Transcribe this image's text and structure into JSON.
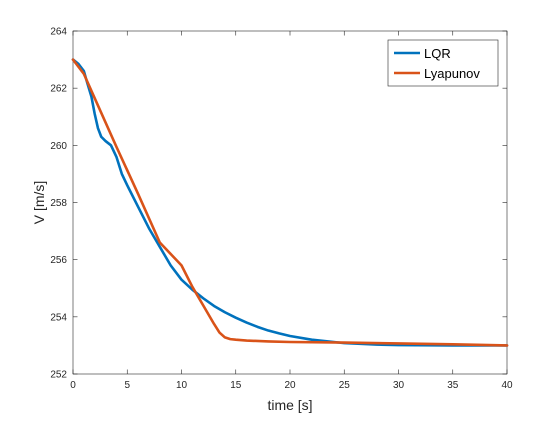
{
  "chart_data": {
    "type": "line",
    "title": "",
    "xlabel": "time [s]",
    "ylabel": "V [m/s]",
    "xlim": [
      0,
      40
    ],
    "ylim": [
      252,
      264
    ],
    "xticks": [
      0,
      5,
      10,
      15,
      20,
      25,
      30,
      35,
      40
    ],
    "yticks": [
      252,
      254,
      256,
      258,
      260,
      262,
      264
    ],
    "grid": false,
    "legend_position": "top-right",
    "series": [
      {
        "name": "LQR",
        "color": "#0072BD",
        "x": [
          0,
          0.5,
          1,
          1.3,
          1.7,
          2.0,
          2.3,
          2.6,
          3.0,
          3.5,
          4.0,
          4.5,
          5.0,
          6.0,
          7.0,
          8.0,
          9.0,
          10.0,
          11.0,
          12.0,
          13.0,
          14.0,
          15.0,
          16.0,
          17.0,
          18.0,
          19.0,
          20.0,
          22.0,
          25.0,
          28.0,
          30.0,
          35.0,
          40.0
        ],
        "y": [
          263.0,
          262.85,
          262.6,
          262.2,
          261.7,
          261.1,
          260.6,
          260.3,
          260.15,
          260.0,
          259.6,
          259.0,
          258.6,
          257.85,
          257.1,
          256.45,
          255.8,
          255.3,
          254.95,
          254.65,
          254.38,
          254.16,
          253.97,
          253.8,
          253.65,
          253.52,
          253.42,
          253.33,
          253.2,
          253.08,
          253.03,
          253.01,
          253.0,
          253.0
        ]
      },
      {
        "name": "Lyapunov",
        "color": "#D95319",
        "x": [
          0,
          1.0,
          2.0,
          4.0,
          6.0,
          8.0,
          10.0,
          11.0,
          12.0,
          13.0,
          13.5,
          14.0,
          14.5,
          15.0,
          16.0,
          18.0,
          20.0,
          25.0,
          30.0,
          35.0,
          40.0
        ],
        "y": [
          263.0,
          262.5,
          261.65,
          259.95,
          258.3,
          256.6,
          255.8,
          255.05,
          254.4,
          253.75,
          253.45,
          253.28,
          253.22,
          253.2,
          253.17,
          253.14,
          253.12,
          253.1,
          253.07,
          253.04,
          253.0
        ]
      }
    ]
  }
}
